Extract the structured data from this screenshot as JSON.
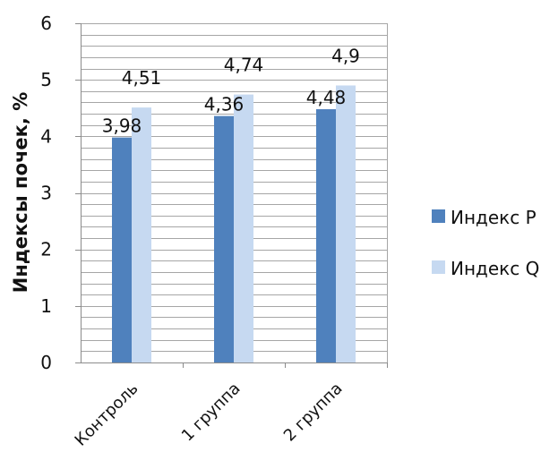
{
  "chart_data": {
    "type": "bar",
    "categories": [
      "Контроль",
      "1 группа",
      "2 группа"
    ],
    "series": [
      {
        "name": "Индекс P",
        "values": [
          3.98,
          4.36,
          4.48
        ],
        "labels": [
          "3,98",
          "4,36",
          "4,48"
        ],
        "color": "#4f81bd"
      },
      {
        "name": "Индекс Q",
        "values": [
          4.51,
          4.74,
          4.9
        ],
        "labels": [
          "4,51",
          "4,74",
          "4,9"
        ],
        "color": "#c6d9f1"
      }
    ],
    "ylabel": "Индексы почек, %",
    "ylim": [
      0,
      6
    ],
    "yticks": [
      "0",
      "1",
      "2",
      "3",
      "4",
      "5",
      "6"
    ],
    "grid": true,
    "legend": "right"
  }
}
